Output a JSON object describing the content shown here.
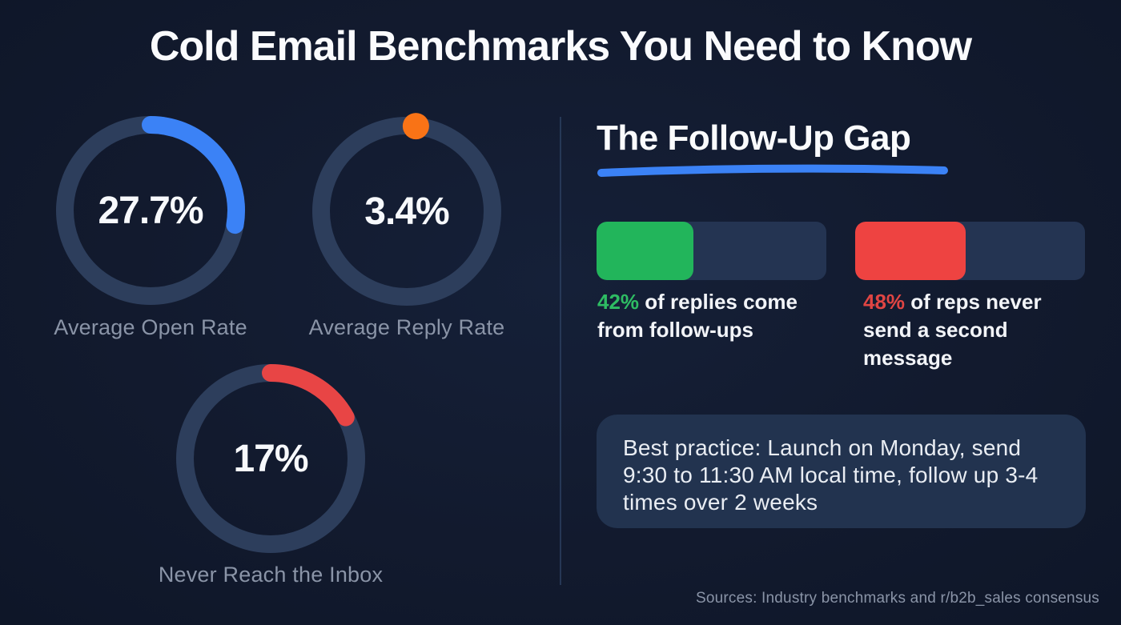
{
  "page": {
    "title": "Cold Email Benchmarks You Need to Know",
    "background_color": "#121a2e",
    "sources": "Sources: Industry benchmarks and r/b2b_sales consensus"
  },
  "donuts": [
    {
      "id": "open-rate",
      "value": 27.7,
      "display": "27.7%",
      "label": "Average Open Rate",
      "color": "#3b82f6",
      "track_color": "#2d3e5c"
    },
    {
      "id": "reply-rate",
      "value": 3.4,
      "display": "3.4%",
      "label": "Average Reply Rate",
      "color": "#f97316",
      "track_color": "#2d3e5c"
    },
    {
      "id": "never-inbox",
      "value": 17,
      "display": "17%",
      "label": "Never Reach the Inbox",
      "color": "#e84545",
      "track_color": "#2d3e5c"
    }
  ],
  "followup": {
    "heading": "The Follow-Up Gap",
    "underline_color": "#3b82f6",
    "bars": [
      {
        "pct": "42%",
        "value": 42,
        "caption": " of replies come from follow-ups",
        "fill": "#22b55b",
        "pct_color": "#2ebc63",
        "track_color": "#243452"
      },
      {
        "pct": "48%",
        "value": 48,
        "caption": " of reps never send a second message",
        "fill": "#ee4341",
        "pct_color": "#e04543",
        "track_color": "#243452"
      }
    ],
    "tip": "Best practice: Launch on Monday, send 9:30 to 11:30 AM local time, follow up 3-4 times over 2 weeks"
  },
  "chart_data": [
    {
      "type": "donut",
      "title": "Average Open Rate",
      "value": 27.7,
      "unit": "%",
      "max": 100,
      "color": "#3b82f6"
    },
    {
      "type": "donut",
      "title": "Average Reply Rate",
      "value": 3.4,
      "unit": "%",
      "max": 100,
      "color": "#f97316"
    },
    {
      "type": "donut",
      "title": "Never Reach the Inbox",
      "value": 17,
      "unit": "%",
      "max": 100,
      "color": "#e84545"
    },
    {
      "type": "bar",
      "title": "The Follow-Up Gap",
      "categories": [
        "Replies that come from follow-ups",
        "Reps who never send a second message"
      ],
      "values": [
        42,
        48
      ],
      "unit": "%",
      "colors": [
        "#22b55b",
        "#ee4341"
      ],
      "xlim": [
        0,
        100
      ],
      "annotation": "Best practice: Launch on Monday, send 9:30 to 11:30 AM local time, follow up 3-4 times over 2 weeks"
    }
  ]
}
